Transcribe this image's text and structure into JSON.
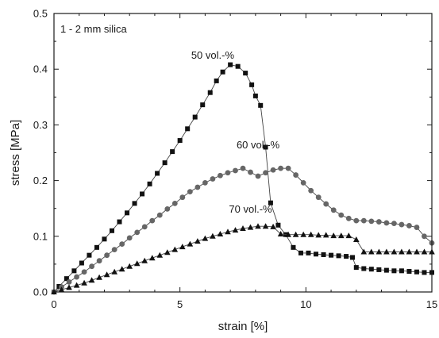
{
  "chart_data": {
    "type": "line",
    "title": "",
    "annotation": "1 - 2 mm silica",
    "xlabel": "strain [%]",
    "ylabel": "stress [MPa]",
    "xlim": [
      0,
      15
    ],
    "ylim": [
      0,
      0.5
    ],
    "xticks": [
      0,
      5,
      10,
      15
    ],
    "yticks": [
      0.0,
      0.1,
      0.2,
      0.3,
      0.4,
      0.5
    ],
    "x_tick_labels": [
      "0",
      "5",
      "10",
      "15"
    ],
    "y_tick_labels": [
      "0.0",
      "0.1",
      "0.2",
      "0.3",
      "0.4",
      "0.5"
    ],
    "grid": false,
    "legend": "none",
    "series": [
      {
        "name": "50 vol.-%",
        "marker": "square",
        "color": "#111111",
        "x": [
          0,
          0.2,
          0.5,
          0.8,
          1.1,
          1.4,
          1.7,
          2.0,
          2.3,
          2.6,
          2.9,
          3.2,
          3.5,
          3.8,
          4.1,
          4.4,
          4.7,
          5.0,
          5.3,
          5.6,
          5.9,
          6.2,
          6.45,
          6.7,
          7.0,
          7.3,
          7.6,
          7.85,
          8.0,
          8.2,
          8.4,
          8.6,
          8.9,
          9.2,
          9.5,
          9.8,
          10.1,
          10.4,
          10.7,
          11.0,
          11.3,
          11.6,
          11.85,
          12.0,
          12.3,
          12.6,
          12.9,
          13.2,
          13.5,
          13.8,
          14.1,
          14.4,
          14.7,
          15.0
        ],
        "y": [
          0.0,
          0.01,
          0.024,
          0.038,
          0.052,
          0.066,
          0.08,
          0.095,
          0.11,
          0.126,
          0.142,
          0.159,
          0.176,
          0.194,
          0.213,
          0.232,
          0.252,
          0.272,
          0.293,
          0.314,
          0.336,
          0.358,
          0.379,
          0.395,
          0.408,
          0.405,
          0.393,
          0.372,
          0.352,
          0.335,
          0.26,
          0.16,
          0.12,
          0.103,
          0.08,
          0.07,
          0.07,
          0.068,
          0.067,
          0.066,
          0.065,
          0.064,
          0.062,
          0.044,
          0.042,
          0.041,
          0.04,
          0.039,
          0.038,
          0.038,
          0.037,
          0.036,
          0.035,
          0.035
        ]
      },
      {
        "name": "60 vol.-%",
        "marker": "circle",
        "color": "#666666",
        "x": [
          0,
          0.3,
          0.6,
          0.9,
          1.2,
          1.5,
          1.8,
          2.1,
          2.4,
          2.7,
          3.0,
          3.3,
          3.6,
          3.9,
          4.2,
          4.5,
          4.8,
          5.1,
          5.4,
          5.7,
          6.0,
          6.3,
          6.6,
          6.9,
          7.2,
          7.5,
          7.8,
          8.1,
          8.4,
          8.7,
          9.0,
          9.3,
          9.6,
          9.9,
          10.2,
          10.5,
          10.8,
          11.1,
          11.4,
          11.7,
          12.0,
          12.3,
          12.6,
          12.9,
          13.2,
          13.5,
          13.8,
          14.1,
          14.4,
          14.7,
          15.0
        ],
        "y": [
          0.0,
          0.009,
          0.018,
          0.027,
          0.036,
          0.046,
          0.056,
          0.066,
          0.076,
          0.086,
          0.097,
          0.107,
          0.117,
          0.128,
          0.138,
          0.149,
          0.159,
          0.17,
          0.18,
          0.188,
          0.196,
          0.203,
          0.209,
          0.214,
          0.218,
          0.222,
          0.215,
          0.208,
          0.214,
          0.219,
          0.222,
          0.222,
          0.21,
          0.196,
          0.182,
          0.17,
          0.158,
          0.147,
          0.138,
          0.132,
          0.128,
          0.128,
          0.127,
          0.126,
          0.124,
          0.123,
          0.121,
          0.119,
          0.116,
          0.1,
          0.088
        ]
      },
      {
        "name": "70 vol.-%",
        "marker": "triangle",
        "color": "#111111",
        "x": [
          0,
          0.3,
          0.6,
          0.9,
          1.2,
          1.5,
          1.8,
          2.1,
          2.4,
          2.7,
          3.0,
          3.3,
          3.6,
          3.9,
          4.2,
          4.5,
          4.8,
          5.1,
          5.4,
          5.7,
          6.0,
          6.3,
          6.6,
          6.9,
          7.2,
          7.5,
          7.8,
          8.1,
          8.4,
          8.7,
          9.0,
          9.3,
          9.6,
          9.9,
          10.2,
          10.5,
          10.8,
          11.1,
          11.4,
          11.7,
          12.0,
          12.3,
          12.6,
          12.9,
          13.2,
          13.5,
          13.8,
          14.1,
          14.4,
          14.7,
          15.0
        ],
        "y": [
          0.0,
          0.004,
          0.008,
          0.012,
          0.016,
          0.021,
          0.026,
          0.031,
          0.036,
          0.041,
          0.046,
          0.051,
          0.056,
          0.061,
          0.066,
          0.071,
          0.076,
          0.081,
          0.086,
          0.091,
          0.096,
          0.1,
          0.104,
          0.108,
          0.111,
          0.114,
          0.116,
          0.118,
          0.118,
          0.117,
          0.104,
          0.103,
          0.103,
          0.103,
          0.103,
          0.102,
          0.102,
          0.101,
          0.101,
          0.101,
          0.094,
          0.072,
          0.072,
          0.072,
          0.072,
          0.072,
          0.072,
          0.072,
          0.072,
          0.072,
          0.072
        ]
      }
    ]
  }
}
